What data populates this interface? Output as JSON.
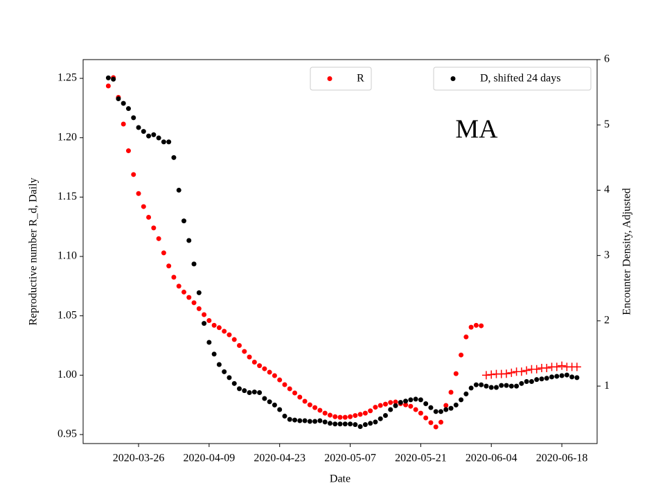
{
  "chart_data": {
    "type": "scatter",
    "annotation": "MA",
    "xlabel": "Date",
    "ylabel": "Reproductive number R_d, Daily",
    "ylabel_color": "#ff0000",
    "y2label": "Encounter Density, Adjusted",
    "xlim": [
      "2020-03-15",
      "2020-06-25"
    ],
    "xticks": [
      "2020-03-26",
      "2020-04-09",
      "2020-04-23",
      "2020-05-07",
      "2020-05-21",
      "2020-06-04",
      "2020-06-18"
    ],
    "ylim": [
      0.9424,
      1.2658
    ],
    "yticks": [
      0.95,
      {
        "value": 1,
        "label": "1.00"
      },
      1.05,
      {
        "value": 1.1,
        "label": "1.10"
      },
      1.15,
      {
        "value": 1.2,
        "label": "1.20"
      },
      1.25
    ],
    "y2lim": [
      0.12,
      6
    ],
    "y2ticks": [
      1,
      2,
      3,
      4,
      5,
      6
    ],
    "x": [
      "2020-03-20",
      "2020-03-21",
      "2020-03-22",
      "2020-03-23",
      "2020-03-24",
      "2020-03-25",
      "2020-03-26",
      "2020-03-27",
      "2020-03-28",
      "2020-03-29",
      "2020-03-30",
      "2020-03-31",
      "2020-04-01",
      "2020-04-02",
      "2020-04-03",
      "2020-04-04",
      "2020-04-05",
      "2020-04-06",
      "2020-04-07",
      "2020-04-08",
      "2020-04-09",
      "2020-04-10",
      "2020-04-11",
      "2020-04-12",
      "2020-04-13",
      "2020-04-14",
      "2020-04-15",
      "2020-04-16",
      "2020-04-17",
      "2020-04-18",
      "2020-04-19",
      "2020-04-20",
      "2020-04-21",
      "2020-04-22",
      "2020-04-23",
      "2020-04-24",
      "2020-04-25",
      "2020-04-26",
      "2020-04-27",
      "2020-04-28",
      "2020-04-29",
      "2020-04-30",
      "2020-05-01",
      "2020-05-02",
      "2020-05-03",
      "2020-05-04",
      "2020-05-05",
      "2020-05-06",
      "2020-05-07",
      "2020-05-08",
      "2020-05-09",
      "2020-05-10",
      "2020-05-11",
      "2020-05-12",
      "2020-05-13",
      "2020-05-14",
      "2020-05-15",
      "2020-05-16",
      "2020-05-17",
      "2020-05-18",
      "2020-05-19",
      "2020-05-20",
      "2020-05-21",
      "2020-05-22",
      "2020-05-23",
      "2020-05-24",
      "2020-05-25",
      "2020-05-26",
      "2020-05-27",
      "2020-05-28",
      "2020-05-29",
      "2020-05-30",
      "2020-05-31",
      "2020-06-01",
      "2020-06-02",
      "2020-06-03",
      "2020-06-04",
      "2020-06-05",
      "2020-06-06",
      "2020-06-07",
      "2020-06-08",
      "2020-06-09",
      "2020-06-10",
      "2020-06-11",
      "2020-06-12",
      "2020-06-13",
      "2020-06-14",
      "2020-06-15",
      "2020-06-16",
      "2020-06-17",
      "2020-06-18",
      "2020-06-19",
      "2020-06-20",
      "2020-06-21"
    ],
    "series": [
      {
        "name": "R",
        "color": "#ff0000",
        "marker": "o",
        "legend_loc": "upper center",
        "values": [
          1.2436,
          1.2506,
          1.234,
          1.2115,
          1.189,
          1.169,
          1.153,
          1.142,
          1.133,
          1.124,
          1.115,
          1.103,
          1.092,
          1.0825,
          1.075,
          1.07,
          1.0655,
          1.061,
          1.056,
          1.051,
          1.046,
          1.042,
          1.04,
          1.037,
          1.034,
          1.03,
          1.025,
          1.02,
          1.0153,
          1.011,
          1.008,
          1.0054,
          1.0025,
          0.9996,
          0.996,
          0.992,
          0.9885,
          0.985,
          0.9815,
          0.978,
          0.975,
          0.9727,
          0.9704,
          0.968,
          0.9663,
          0.965,
          0.9645,
          0.9645,
          0.965,
          0.966,
          0.967,
          0.968,
          0.97,
          0.973,
          0.9745,
          0.9756,
          0.977,
          0.9774,
          0.976,
          0.975,
          0.9738,
          0.971,
          0.968,
          0.964,
          0.96,
          0.9564,
          0.9604,
          0.9745,
          0.9856,
          1.0013,
          1.017,
          1.0322,
          1.0404,
          1.042,
          1.0416,
          null,
          null,
          null,
          null,
          null,
          null,
          null,
          null,
          null,
          null,
          null,
          null,
          null,
          null,
          null,
          null,
          null,
          null,
          null
        ]
      },
      {
        "color": "#ff0000",
        "marker": "+",
        "values": [
          null,
          null,
          null,
          null,
          null,
          null,
          null,
          null,
          null,
          null,
          null,
          null,
          null,
          null,
          null,
          null,
          null,
          null,
          null,
          null,
          null,
          null,
          null,
          null,
          null,
          null,
          null,
          null,
          null,
          null,
          null,
          null,
          null,
          null,
          null,
          null,
          null,
          null,
          null,
          null,
          null,
          null,
          null,
          null,
          null,
          null,
          null,
          null,
          null,
          null,
          null,
          null,
          null,
          null,
          null,
          null,
          null,
          null,
          null,
          null,
          null,
          null,
          null,
          null,
          null,
          null,
          null,
          null,
          null,
          null,
          null,
          null,
          null,
          null,
          null,
          1.0,
          1.0005,
          1.001,
          1.001,
          1.0012,
          1.002,
          1.003,
          1.003,
          1.004,
          1.005,
          1.005,
          1.006,
          1.006,
          1.007,
          1.007,
          1.008,
          1.007,
          1.007,
          1.007
        ]
      },
      {
        "name": "D, shifted 24 days",
        "color": "#000000",
        "marker": "o",
        "axis": "y2",
        "legend_loc": "upper right",
        "values": [
          5.72,
          5.7,
          5.4,
          5.33,
          5.25,
          5.11,
          4.96,
          4.9,
          4.83,
          4.85,
          4.8,
          4.74,
          4.74,
          4.5,
          4.0,
          3.53,
          3.23,
          2.87,
          2.43,
          1.96,
          1.67,
          1.49,
          1.33,
          1.22,
          1.13,
          1.04,
          0.96,
          0.93,
          0.9,
          0.91,
          0.9,
          0.81,
          0.76,
          0.71,
          0.64,
          0.54,
          0.49,
          0.48,
          0.47,
          0.47,
          0.46,
          0.46,
          0.47,
          0.45,
          0.43,
          0.42,
          0.42,
          0.42,
          0.42,
          0.41,
          0.38,
          0.41,
          0.43,
          0.45,
          0.5,
          0.55,
          0.64,
          0.7,
          0.75,
          0.77,
          0.79,
          0.8,
          0.79,
          0.73,
          0.67,
          0.61,
          0.61,
          0.64,
          0.66,
          0.71,
          0.79,
          0.88,
          0.97,
          1.02,
          1.02,
          1.0,
          0.98,
          0.98,
          1.01,
          1.01,
          1.0,
          1.0,
          1.04,
          1.07,
          1.07,
          1.1,
          1.11,
          1.12,
          1.14,
          1.15,
          1.16,
          1.17,
          1.14,
          1.13
        ]
      }
    ]
  }
}
